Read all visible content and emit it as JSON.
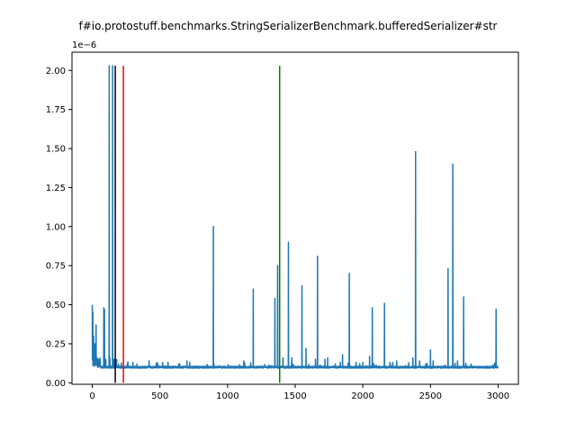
{
  "chart_data": {
    "type": "line",
    "title": "f#io.protostuff.benchmarks.StringSerializerBenchmark.bufferedSerializer#str",
    "xlabel": "",
    "ylabel": "",
    "y_offset_label": "1e−6",
    "xlim": [
      -150,
      3150
    ],
    "ylim": [
      -9.6e-09,
      2.1168e-06
    ],
    "x_ticks": [
      0,
      500,
      1000,
      1500,
      2000,
      2500,
      3000
    ],
    "x_tick_labels": [
      "0",
      "500",
      "1000",
      "1500",
      "2000",
      "2500",
      "3000"
    ],
    "y_ticks": [
      0,
      2.5e-07,
      5e-07,
      7.5e-07,
      1e-06,
      1.25e-06,
      1.5e-06,
      1.75e-06,
      2e-06
    ],
    "y_tick_labels": [
      "0.00",
      "0.25",
      "0.50",
      "0.75",
      "1.00",
      "1.25",
      "1.50",
      "1.75",
      "2.00"
    ],
    "grid": false,
    "series": [
      {
        "color": "#1f77b4",
        "n_points": 3000,
        "baseline": 1e-07,
        "spikes": [
          [
            0,
            5e-07
          ],
          [
            4,
            4.5e-07
          ],
          [
            10,
            3e-07
          ],
          [
            15,
            2.2e-07
          ],
          [
            20,
            2.5e-07
          ],
          [
            28,
            3.7e-07
          ],
          [
            35,
            1.6e-07
          ],
          [
            45,
            1.4e-07
          ],
          [
            85,
            4.8e-07
          ],
          [
            90,
            4.7e-07
          ],
          [
            100,
            1.5e-07
          ],
          [
            125,
            2.03e-06
          ],
          [
            130,
            1.6e-07
          ],
          [
            150,
            2.03e-06
          ],
          [
            160,
            1.5e-07
          ],
          [
            180,
            1.5e-07
          ],
          [
            260,
            1.2e-07
          ],
          [
            300,
            1.3e-07
          ],
          [
            330,
            1.2e-07
          ],
          [
            420,
            1.4e-07
          ],
          [
            480,
            1.3e-07
          ],
          [
            520,
            1.3e-07
          ],
          [
            560,
            1.3e-07
          ],
          [
            640,
            1.2e-07
          ],
          [
            700,
            1.4e-07
          ],
          [
            720,
            1.3e-07
          ],
          [
            895,
            1e-06
          ],
          [
            1120,
            1.4e-07
          ],
          [
            1190,
            6e-07
          ],
          [
            1350,
            5.4e-07
          ],
          [
            1370,
            7.5e-07
          ],
          [
            1410,
            1.6e-07
          ],
          [
            1450,
            9e-07
          ],
          [
            1475,
            1.6e-07
          ],
          [
            1550,
            6.2e-07
          ],
          [
            1580,
            2.2e-07
          ],
          [
            1650,
            1.5e-07
          ],
          [
            1665,
            8.1e-07
          ],
          [
            1720,
            1.5e-07
          ],
          [
            1740,
            1.6e-07
          ],
          [
            1850,
            1.8e-07
          ],
          [
            1900,
            7e-07
          ],
          [
            1950,
            1.3e-07
          ],
          [
            2000,
            1.3e-07
          ],
          [
            2050,
            1.7e-07
          ],
          [
            2070,
            4.8e-07
          ],
          [
            2080,
            1.2e-07
          ],
          [
            2160,
            5.1e-07
          ],
          [
            2200,
            1.3e-07
          ],
          [
            2250,
            1.4e-07
          ],
          [
            2370,
            1.6e-07
          ],
          [
            2390,
            1.48e-06
          ],
          [
            2420,
            1.4e-07
          ],
          [
            2500,
            2.1e-07
          ],
          [
            2520,
            1.4e-07
          ],
          [
            2630,
            7.3e-07
          ],
          [
            2665,
            1.4e-06
          ],
          [
            2700,
            1.4e-07
          ],
          [
            2745,
            5.5e-07
          ],
          [
            2800,
            1.2e-07
          ],
          [
            2985,
            4.7e-07
          ],
          [
            2990,
            1.1e-07
          ]
        ]
      }
    ],
    "vertical_lines": [
      {
        "x": 170,
        "ymin": 0,
        "ymax": 2.03e-06,
        "color": "#000000"
      },
      {
        "x": 230,
        "ymin": 0,
        "ymax": 2.03e-06,
        "color": "#ff0000"
      },
      {
        "x": 1385,
        "ymin": 0,
        "ymax": 2.03e-06,
        "color": "#008000"
      }
    ]
  }
}
